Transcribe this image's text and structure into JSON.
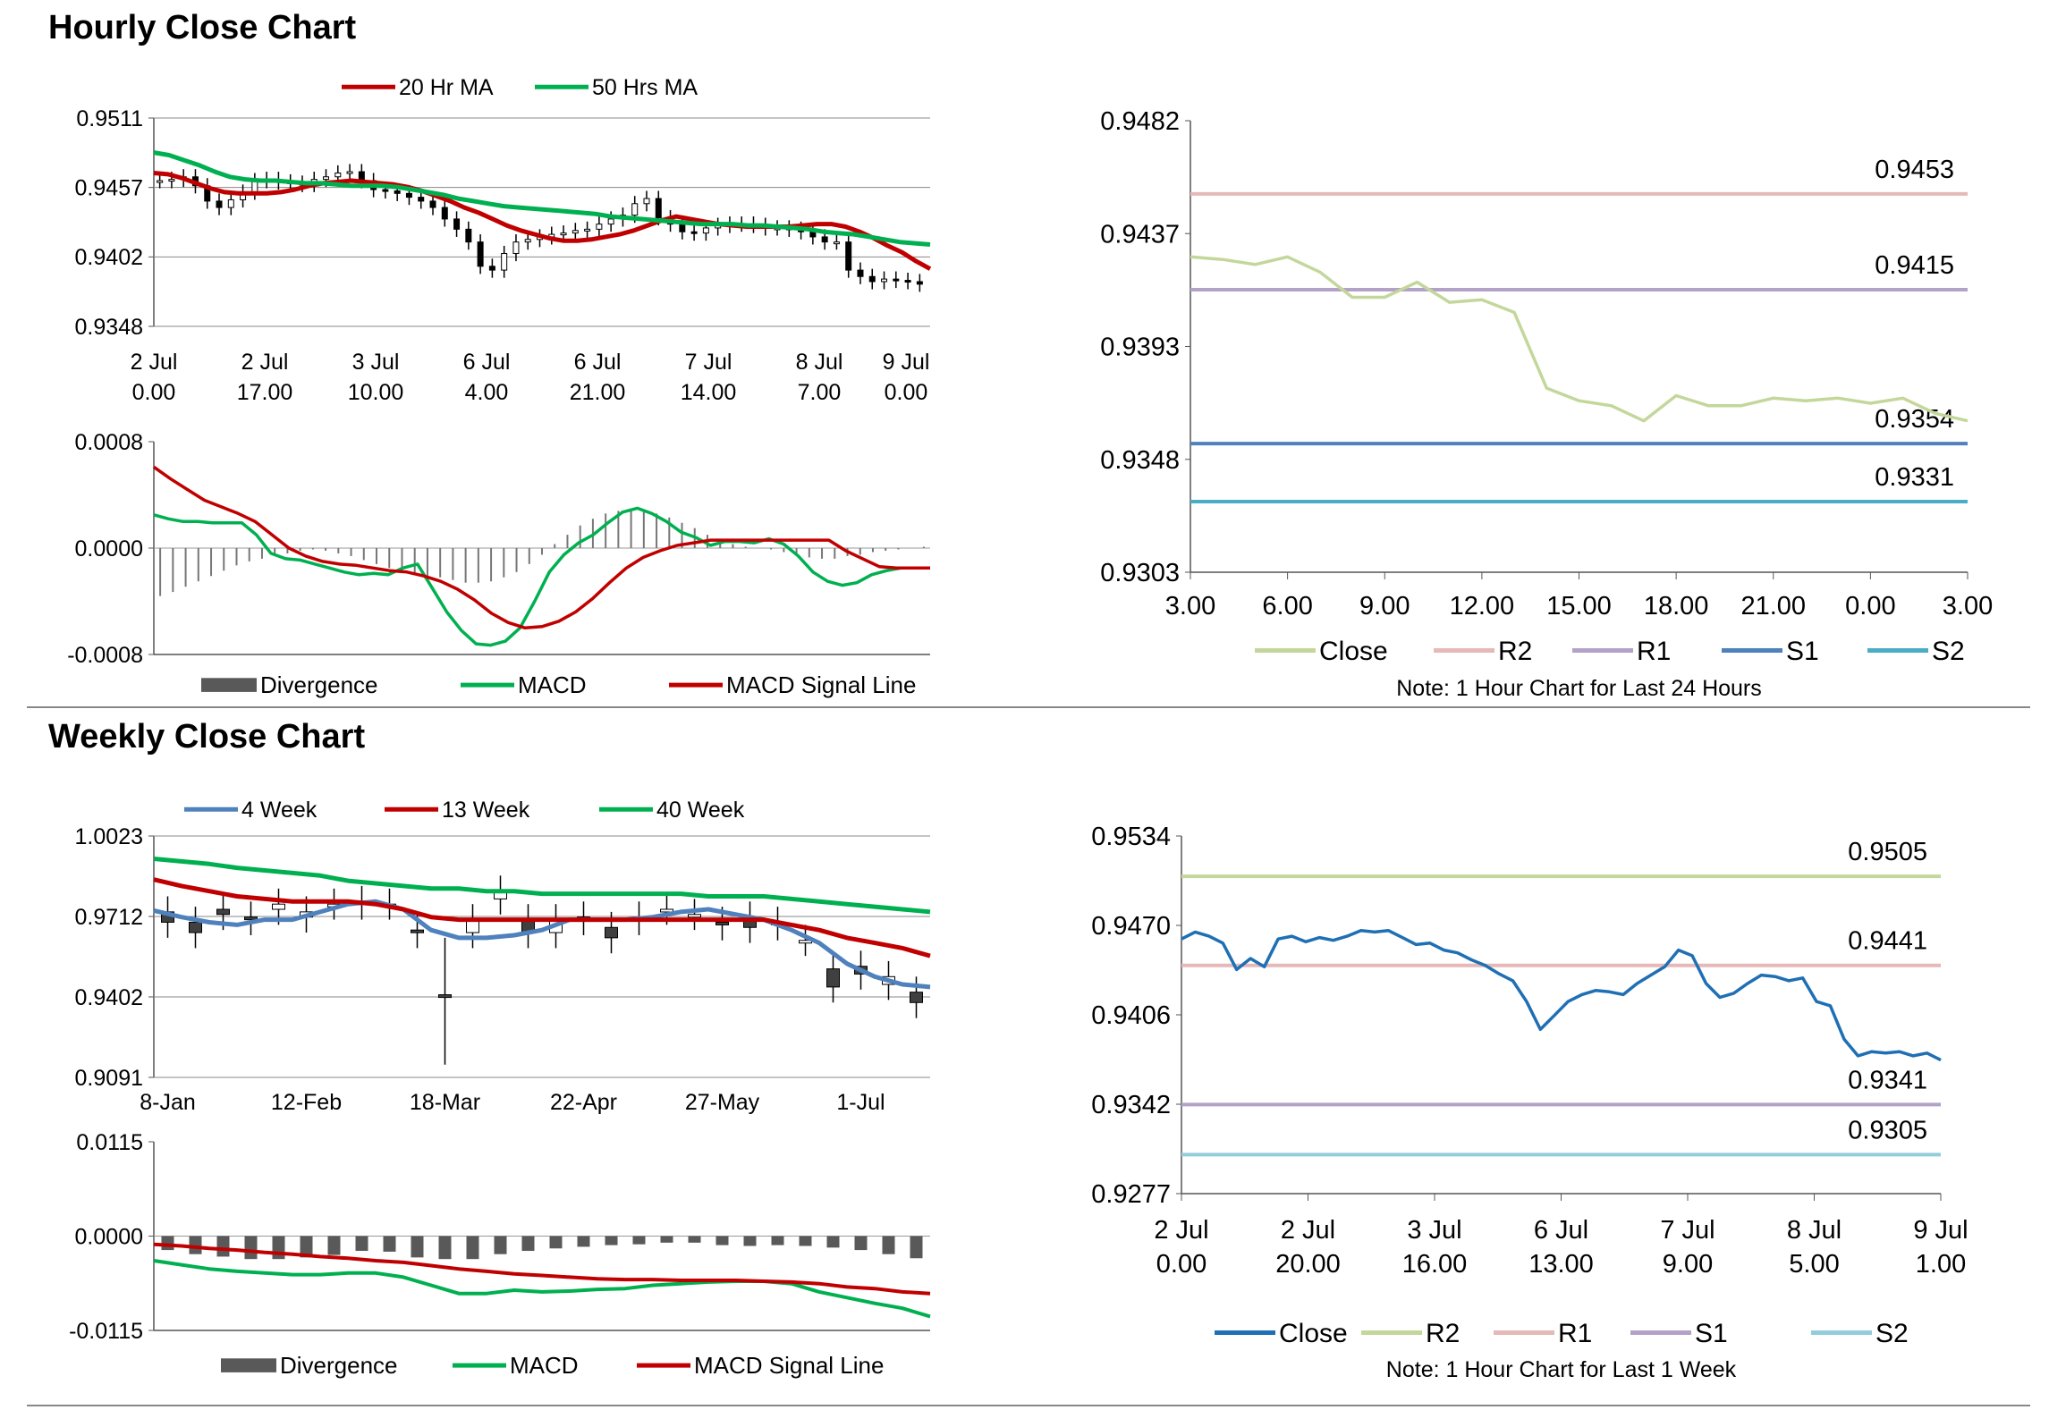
{
  "sections": {
    "hourly_title": "Hourly Close Chart",
    "weekly_title": "Weekly Close Chart"
  },
  "chart_data": [
    {
      "id": "hourly-price",
      "type": "candlestick",
      "ylim": [
        0.9348,
        0.9511
      ],
      "yticks": [
        "0.9511",
        "0.9457",
        "0.9402",
        "0.9348"
      ],
      "xticks": [
        [
          "2 Jul",
          "0.00"
        ],
        [
          "2 Jul",
          "17.00"
        ],
        [
          "3 Jul",
          "10.00"
        ],
        [
          "6 Jul",
          "4.00"
        ],
        [
          "6 Jul",
          "21.00"
        ],
        [
          "7 Jul",
          "14.00"
        ],
        [
          "8 Jul",
          "7.00"
        ],
        [
          "9 Jul",
          "0.00"
        ]
      ],
      "grid": "horizontal",
      "legend_position": "top",
      "close": [
        0.9462,
        0.9463,
        0.9465,
        0.9458,
        0.9446,
        0.9441,
        0.9447,
        0.9453,
        0.9462,
        0.9463,
        0.9461,
        0.946,
        0.9459,
        0.9463,
        0.9465,
        0.9468,
        0.9469,
        0.9462,
        0.9455,
        0.9454,
        0.9452,
        0.9449,
        0.9446,
        0.9441,
        0.9432,
        0.9424,
        0.9414,
        0.9395,
        0.9392,
        0.9405,
        0.9414,
        0.9416,
        0.9418,
        0.942,
        0.9421,
        0.9423,
        0.9424,
        0.9428,
        0.9432,
        0.9435,
        0.9444,
        0.9448,
        0.9433,
        0.9428,
        0.9422,
        0.9421,
        0.9425,
        0.9427,
        0.9428,
        0.9428,
        0.9427,
        0.9425,
        0.9425,
        0.9424,
        0.9422,
        0.9418,
        0.9414,
        0.9414,
        0.9392,
        0.9387,
        0.9383,
        0.9385,
        0.9384,
        0.9383,
        0.9381
      ],
      "series": [
        {
          "name": "20 Hr MA",
          "color": "#c00000",
          "values": [
            0.9468,
            0.9467,
            0.9464,
            0.946,
            0.9456,
            0.9453,
            0.9452,
            0.9452,
            0.9452,
            0.9453,
            0.9455,
            0.9458,
            0.946,
            0.9461,
            0.9462,
            0.9461,
            0.946,
            0.9459,
            0.9457,
            0.9454,
            0.945,
            0.9446,
            0.9441,
            0.9437,
            0.9432,
            0.9427,
            0.9423,
            0.942,
            0.9417,
            0.9415,
            0.9415,
            0.9416,
            0.9418,
            0.942,
            0.9423,
            0.9427,
            0.9431,
            0.9434,
            0.9432,
            0.943,
            0.9428,
            0.9427,
            0.9426,
            0.9426,
            0.9426,
            0.9426,
            0.9427,
            0.9428,
            0.9428,
            0.9426,
            0.9422,
            0.9417,
            0.9411,
            0.9406,
            0.9399,
            0.9393
          ]
        },
        {
          "name": "50 Hrs MA",
          "color": "#00b050",
          "values": [
            0.9484,
            0.9482,
            0.9478,
            0.9474,
            0.9469,
            0.9465,
            0.9463,
            0.9462,
            0.9462,
            0.9461,
            0.946,
            0.946,
            0.9459,
            0.9458,
            0.9458,
            0.9458,
            0.9457,
            0.9455,
            0.9453,
            0.9451,
            0.9448,
            0.9446,
            0.9444,
            0.9442,
            0.9441,
            0.944,
            0.9439,
            0.9438,
            0.9437,
            0.9436,
            0.9434,
            0.9433,
            0.9432,
            0.9431,
            0.943,
            0.9429,
            0.9428,
            0.9428,
            0.9428,
            0.9427,
            0.9427,
            0.9426,
            0.9425,
            0.9424,
            0.9422,
            0.9421,
            0.942,
            0.9418,
            0.9416,
            0.9414,
            0.9413,
            0.9412
          ]
        }
      ]
    },
    {
      "id": "hourly-macd",
      "type": "bar+line",
      "ylim": [
        -0.0008,
        0.0008
      ],
      "yticks": [
        "0.0008",
        "0.0000",
        "-0.0008"
      ],
      "legend_position": "bottom",
      "divergence": [
        -0.00036,
        -0.00033,
        -0.00029,
        -0.00025,
        -0.00021,
        -0.00017,
        -0.00013,
        -0.0001,
        -8e-05,
        -6e-05,
        -4e-05,
        -2e-05,
        -1e-05,
        -2e-05,
        -4e-05,
        -6e-05,
        -9e-05,
        -0.00012,
        -0.00015,
        -0.00018,
        -0.0002,
        -0.00021,
        -0.00022,
        -0.00024,
        -0.00026,
        -0.00026,
        -0.00025,
        -0.00022,
        -0.00018,
        -0.00012,
        -5e-05,
        3e-05,
        0.0001,
        0.00017,
        0.00022,
        0.00026,
        0.00028,
        0.00029,
        0.00028,
        0.00026,
        0.00023,
        0.00019,
        0.00015,
        0.0001,
        6e-05,
        3e-05,
        1e-05,
        0,
        -1e-05,
        -3e-05,
        -5e-05,
        -7e-05,
        -8e-05,
        -8e-05,
        -6e-05,
        -5e-05,
        -3e-05,
        -2e-05,
        -1e-05,
        0,
        1e-05
      ],
      "series": [
        {
          "name": "MACD",
          "color": "#00b050",
          "values": [
            0.00025,
            0.00022,
            0.0002,
            0.0002,
            0.00019,
            0.00019,
            0.00019,
            0.0001,
            -4e-05,
            -8e-05,
            -9e-05,
            -0.00012,
            -0.00015,
            -0.00018,
            -0.0002,
            -0.00019,
            -0.0002,
            -0.00015,
            -0.00012,
            -0.0003,
            -0.00048,
            -0.00062,
            -0.00072,
            -0.00073,
            -0.0007,
            -0.0006,
            -0.0004,
            -0.00018,
            -5e-05,
            4e-05,
            0.0001,
            0.00019,
            0.00027,
            0.0003,
            0.00026,
            0.0002,
            0.00012,
            8e-05,
            2e-05,
            5e-05,
            5e-05,
            4e-05,
            7e-05,
            3e-05,
            -6e-05,
            -0.00018,
            -0.00025,
            -0.00028,
            -0.00026,
            -0.0002,
            -0.00017,
            -0.00015,
            -0.00015,
            -0.00015
          ]
        },
        {
          "name": "MACD Signal Line",
          "color": "#c00000",
          "values": [
            0.00061,
            0.00052,
            0.00044,
            0.00036,
            0.00031,
            0.00026,
            0.0002,
            0.0001,
            0,
            -6e-05,
            -0.0001,
            -0.00012,
            -0.00013,
            -0.00015,
            -0.00017,
            -0.00018,
            -0.00021,
            -0.00025,
            -0.00031,
            -0.00039,
            -0.00049,
            -0.00056,
            -0.0006,
            -0.00059,
            -0.00055,
            -0.00048,
            -0.00038,
            -0.00026,
            -0.00015,
            -7e-05,
            -2e-05,
            2e-05,
            4e-05,
            6e-05,
            6e-05,
            6e-05,
            6e-05,
            6e-05,
            6e-05,
            6e-05,
            6e-05,
            -2e-05,
            -8e-05,
            -0.00014,
            -0.00015,
            -0.00015,
            -0.00015
          ]
        }
      ],
      "divergence_name": "Divergence"
    },
    {
      "id": "hourly-pivot",
      "type": "line",
      "ylim": [
        0.9303,
        0.9482
      ],
      "yticks": [
        "0.9482",
        "0.9437",
        "0.9393",
        "0.9348",
        "0.9303"
      ],
      "xticks": [
        "3.00",
        "6.00",
        "9.00",
        "12.00",
        "15.00",
        "18.00",
        "21.00",
        "0.00",
        "3.00"
      ],
      "legend_position": "bottom",
      "note": "Note: 1 Hour Chart for Last 24 Hours",
      "close": {
        "name": "Close",
        "color": "#c4d79b",
        "values": [
          0.9428,
          0.9427,
          0.9425,
          0.9428,
          0.9422,
          0.9412,
          0.9412,
          0.9418,
          0.941,
          0.9411,
          0.9406,
          0.9376,
          0.9371,
          0.9369,
          0.9363,
          0.9373,
          0.9369,
          0.9369,
          0.9372,
          0.9371,
          0.9372,
          0.937,
          0.9372,
          0.9366,
          0.9363
        ]
      },
      "levels": [
        {
          "name": "R2",
          "value": 0.9453,
          "label": "0.9453",
          "color": "#e6b9b8"
        },
        {
          "name": "R1",
          "value": 0.9415,
          "label": "0.9415",
          "color": "#b3a2c7"
        },
        {
          "name": "S1",
          "value": 0.9354,
          "label": "0.9354",
          "color": "#4f81bd"
        },
        {
          "name": "S2",
          "value": 0.9331,
          "label": "0.9331",
          "color": "#4bacc6"
        }
      ]
    },
    {
      "id": "weekly-price",
      "type": "candlestick",
      "ylim": [
        0.9091,
        1.0023
      ],
      "yticks": [
        "1.0023",
        "0.9712",
        "0.9402",
        "0.9091"
      ],
      "xticks": [
        "8-Jan",
        "12-Feb",
        "18-Mar",
        "22-Apr",
        "27-May",
        "1-Jul"
      ],
      "grid": "horizontal",
      "legend_position": "top",
      "candles": [
        [
          0.973,
          0.969
        ],
        [
          0.969,
          0.965
        ],
        [
          0.974,
          0.972
        ],
        [
          0.971,
          0.97
        ],
        [
          0.974,
          0.976
        ],
        [
          0.971,
          0.973
        ],
        [
          0.976,
          0.976
        ],
        [
          0.977,
          0.976
        ],
        [
          0.976,
          0.976
        ],
        [
          0.966,
          0.965
        ],
        [
          0.941,
          0.94
        ],
        [
          0.965,
          0.97
        ],
        [
          0.978,
          0.981
        ],
        [
          0.97,
          0.965
        ],
        [
          0.965,
          0.97
        ],
        [
          0.971,
          0.97
        ],
        [
          0.967,
          0.963
        ],
        [
          0.971,
          0.97
        ],
        [
          0.974,
          0.974
        ],
        [
          0.972,
          0.972
        ],
        [
          0.969,
          0.968
        ],
        [
          0.971,
          0.967
        ],
        [
          0.969,
          0.968
        ],
        [
          0.962,
          0.962
        ],
        [
          0.951,
          0.944
        ],
        [
          0.952,
          0.949
        ],
        [
          0.945,
          0.948
        ],
        [
          0.942,
          0.938
        ]
      ],
      "series": [
        {
          "name": "4 Week",
          "color": "#4f81bd",
          "values": [
            0.9735,
            0.971,
            0.969,
            0.968,
            0.97,
            0.97,
            0.973,
            0.976,
            0.977,
            0.974,
            0.966,
            0.963,
            0.963,
            0.964,
            0.966,
            0.97,
            0.97,
            0.97,
            0.971,
            0.973,
            0.974,
            0.972,
            0.97,
            0.966,
            0.961,
            0.953,
            0.948,
            0.945,
            0.944
          ]
        },
        {
          "name": "13 Week",
          "color": "#c00000",
          "values": [
            0.9855,
            0.983,
            0.981,
            0.979,
            0.978,
            0.977,
            0.977,
            0.977,
            0.976,
            0.974,
            0.971,
            0.97,
            0.97,
            0.97,
            0.97,
            0.97,
            0.97,
            0.97,
            0.97,
            0.97,
            0.97,
            0.97,
            0.97,
            0.968,
            0.966,
            0.963,
            0.961,
            0.959,
            0.956
          ]
        },
        {
          "name": "40 Week",
          "color": "#00b050",
          "values": [
            0.9935,
            0.9925,
            0.9915,
            0.99,
            0.989,
            0.988,
            0.987,
            0.985,
            0.984,
            0.983,
            0.982,
            0.982,
            0.981,
            0.981,
            0.98,
            0.98,
            0.98,
            0.98,
            0.98,
            0.98,
            0.979,
            0.979,
            0.979,
            0.978,
            0.977,
            0.976,
            0.975,
            0.974,
            0.973
          ]
        }
      ]
    },
    {
      "id": "weekly-macd",
      "type": "bar+line",
      "ylim": [
        -0.0115,
        0.0115
      ],
      "yticks": [
        "0.0115",
        "0.0000",
        "-0.0115"
      ],
      "legend_position": "bottom",
      "divergence_name": "Divergence",
      "divergence": [
        -0.0017,
        -0.0022,
        -0.0025,
        -0.0028,
        -0.0028,
        -0.0026,
        -0.0023,
        -0.0018,
        -0.0019,
        -0.0026,
        -0.0028,
        -0.0028,
        -0.0022,
        -0.0018,
        -0.0015,
        -0.0013,
        -0.0011,
        -0.001,
        -0.0008,
        -0.0008,
        -0.0011,
        -0.0012,
        -0.0011,
        -0.0012,
        -0.0014,
        -0.0017,
        -0.0022,
        -0.0027
      ],
      "series": [
        {
          "name": "MACD",
          "color": "#00b050",
          "values": [
            -0.003,
            -0.0035,
            -0.004,
            -0.0043,
            -0.0045,
            -0.0047,
            -0.0047,
            -0.0045,
            -0.0045,
            -0.005,
            -0.006,
            -0.007,
            -0.007,
            -0.0066,
            -0.0068,
            -0.0067,
            -0.0065,
            -0.0064,
            -0.006,
            -0.0058,
            -0.0056,
            -0.0055,
            -0.0055,
            -0.0058,
            -0.0068,
            -0.0075,
            -0.0082,
            -0.0088,
            -0.0098
          ]
        },
        {
          "name": "MACD Signal Line",
          "color": "#c00000",
          "values": [
            -0.001,
            -0.0012,
            -0.0015,
            -0.0017,
            -0.002,
            -0.0022,
            -0.0025,
            -0.0027,
            -0.003,
            -0.0032,
            -0.0036,
            -0.004,
            -0.0043,
            -0.0046,
            -0.0048,
            -0.005,
            -0.0052,
            -0.0053,
            -0.0053,
            -0.0054,
            -0.0054,
            -0.0054,
            -0.0055,
            -0.0056,
            -0.0058,
            -0.0062,
            -0.0064,
            -0.0068,
            -0.007
          ]
        }
      ]
    },
    {
      "id": "weekly-pivot",
      "type": "line",
      "ylim": [
        0.9277,
        0.9534
      ],
      "yticks": [
        "0.9534",
        "0.9470",
        "0.9406",
        "0.9342",
        "0.9277"
      ],
      "xticks": [
        [
          "2 Jul",
          "0.00"
        ],
        [
          "2 Jul",
          "20.00"
        ],
        [
          "3 Jul",
          "16.00"
        ],
        [
          "6 Jul",
          "13.00"
        ],
        [
          "7 Jul",
          "9.00"
        ],
        [
          "8 Jul",
          "5.00"
        ],
        [
          "9 Jul",
          "1.00"
        ]
      ],
      "legend_position": "bottom",
      "note": "Note: 1 Hour Chart for Last 1 Week",
      "close": {
        "name": "Close",
        "color": "#1f6fb4",
        "values": [
          0.946,
          0.9465,
          0.9462,
          0.9457,
          0.9438,
          0.9446,
          0.944,
          0.946,
          0.9462,
          0.9458,
          0.9461,
          0.9459,
          0.9462,
          0.9466,
          0.9465,
          0.9466,
          0.9461,
          0.9456,
          0.9457,
          0.9452,
          0.945,
          0.9445,
          0.9441,
          0.9435,
          0.943,
          0.9415,
          0.9395,
          0.9405,
          0.9415,
          0.942,
          0.9423,
          0.9422,
          0.942,
          0.9428,
          0.9434,
          0.944,
          0.9452,
          0.9448,
          0.9428,
          0.9418,
          0.9421,
          0.9428,
          0.9434,
          0.9433,
          0.943,
          0.9432,
          0.9415,
          0.9412,
          0.9388,
          0.9376,
          0.9379,
          0.9378,
          0.9379,
          0.9376,
          0.9378,
          0.9373
        ]
      },
      "levels": [
        {
          "name": "R2",
          "value": 0.9505,
          "label": "0.9505",
          "color": "#c4d79b"
        },
        {
          "name": "R1",
          "value": 0.9441,
          "label": "0.9441",
          "color": "#e6b9b8"
        },
        {
          "name": "S1",
          "value": 0.9341,
          "label": "0.9341",
          "color": "#b3a2c7"
        },
        {
          "name": "S2",
          "value": 0.9305,
          "label": "0.9305",
          "color": "#92cddc"
        }
      ]
    }
  ]
}
